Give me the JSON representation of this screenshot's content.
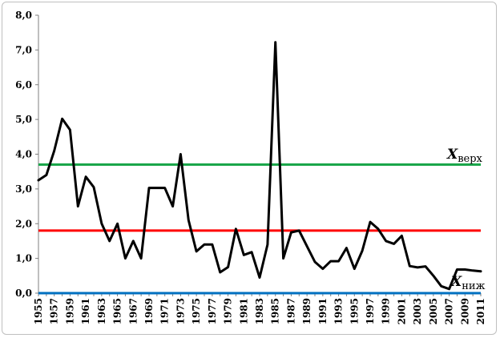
{
  "chart_data": {
    "type": "line",
    "title": "",
    "xlabel": "",
    "ylabel": "",
    "ylim": [
      0,
      8
    ],
    "y_ticks": [
      "0,0",
      "1,0",
      "2,0",
      "3,0",
      "4,0",
      "5,0",
      "6,0",
      "7,0",
      "8,0"
    ],
    "x_tick_labels": [
      "1955",
      "1957",
      "1959",
      "1961",
      "1963",
      "1965",
      "1967",
      "1969",
      "1971",
      "1973",
      "1975",
      "1977",
      "1979",
      "1981",
      "1983",
      "1985",
      "1987",
      "1989",
      "1991",
      "1993",
      "1995",
      "1997",
      "1999",
      "2001",
      "2003",
      "2005",
      "2007",
      "2009",
      "2011"
    ],
    "grid": false,
    "series": [
      {
        "color": "#000000",
        "x": [
          1955,
          1956,
          1957,
          1958,
          1959,
          1960,
          1961,
          1962,
          1963,
          1964,
          1965,
          1966,
          1967,
          1968,
          1969,
          1970,
          1971,
          1972,
          1973,
          1974,
          1975,
          1976,
          1977,
          1978,
          1979,
          1980,
          1981,
          1982,
          1983,
          1984,
          1985,
          1986,
          1987,
          1988,
          1989,
          1990,
          1991,
          1992,
          1993,
          1994,
          1995,
          1996,
          1997,
          1998,
          1999,
          2000,
          2001,
          2002,
          2003,
          2004,
          2005,
          2006,
          2007,
          2008,
          2009,
          2010,
          2011
        ],
        "values": [
          3.25,
          3.4,
          4.1,
          5.02,
          4.7,
          2.5,
          3.35,
          3.05,
          2.0,
          1.5,
          2.0,
          1.0,
          1.5,
          1.0,
          3.03,
          3.03,
          3.03,
          2.5,
          4.0,
          2.1,
          1.2,
          1.4,
          1.4,
          0.6,
          0.75,
          1.85,
          1.1,
          1.18,
          0.45,
          1.4,
          7.22,
          1.0,
          1.75,
          1.8,
          1.35,
          0.9,
          0.7,
          0.92,
          0.92,
          1.3,
          0.7,
          1.22,
          2.05,
          1.85,
          1.5,
          1.42,
          1.65,
          0.78,
          0.74,
          0.77,
          0.5,
          0.2,
          0.12,
          0.68,
          0.68,
          0.65,
          0.63
        ]
      }
    ],
    "reference_lines": [
      {
        "y": 3.7,
        "color": "#1aa64a",
        "label_main": "X",
        "label_sub": "верх"
      },
      {
        "y": 1.8,
        "color": "#ff0000"
      },
      {
        "y": 0.0,
        "color": "#0070c0",
        "label_main": "X",
        "label_sub": "ниж"
      }
    ]
  }
}
